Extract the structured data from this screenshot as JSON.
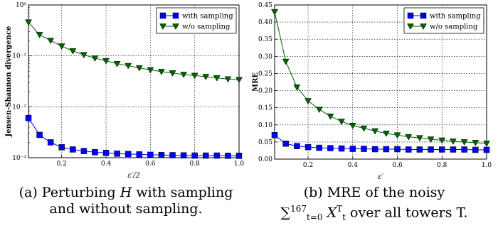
{
  "chart_data": [
    {
      "type": "line",
      "scale": "log",
      "xlabel": "ε′/2",
      "ylabel": "Jensen-Shannon divergence",
      "xlim": [
        0.05,
        1.0
      ],
      "ylim": [
        0.001,
        1.0
      ],
      "xticks": [
        "0.2",
        "0.4",
        "0.6",
        "0.8",
        "1.0"
      ],
      "yticks": [
        "10⁻³",
        "10⁻²",
        "10⁻¹",
        "10⁰"
      ],
      "grid": true,
      "legend_position": "top-right",
      "x": [
        0.05,
        0.1,
        0.15,
        0.2,
        0.25,
        0.3,
        0.35,
        0.4,
        0.45,
        0.5,
        0.55,
        0.6,
        0.65,
        0.7,
        0.75,
        0.8,
        0.85,
        0.9,
        0.95,
        1.0
      ],
      "series": [
        {
          "name": "with sampling",
          "color": "#0000ff",
          "marker": "square",
          "values": [
            0.006,
            0.0028,
            0.002,
            0.0016,
            0.00145,
            0.00135,
            0.00128,
            0.00124,
            0.0012,
            0.00118,
            0.00116,
            0.00114,
            0.00113,
            0.00112,
            0.00111,
            0.0011,
            0.0011,
            0.0011,
            0.00109,
            0.00109
          ]
        },
        {
          "name": "w/o sampling",
          "color": "#006400",
          "marker": "triangle-down",
          "values": [
            0.46,
            0.26,
            0.2,
            0.155,
            0.125,
            0.105,
            0.09,
            0.08,
            0.07,
            0.064,
            0.058,
            0.053,
            0.049,
            0.046,
            0.043,
            0.041,
            0.039,
            0.037,
            0.035,
            0.034
          ]
        }
      ]
    },
    {
      "type": "line",
      "scale": "linear",
      "xlabel": "ε′",
      "ylabel": "MRE",
      "xlim": [
        0.05,
        1.0
      ],
      "ylim": [
        0.0,
        0.45
      ],
      "xticks": [
        "0.2",
        "0.4",
        "0.6",
        "0.8",
        "1.0"
      ],
      "yticks": [
        "0.00",
        "0.05",
        "0.10",
        "0.15",
        "0.20",
        "0.25",
        "0.30",
        "0.35",
        "0.40",
        "0.45"
      ],
      "grid": true,
      "legend_position": "top-right",
      "x": [
        0.05,
        0.1,
        0.15,
        0.2,
        0.25,
        0.3,
        0.35,
        0.4,
        0.45,
        0.5,
        0.55,
        0.6,
        0.65,
        0.7,
        0.75,
        0.8,
        0.85,
        0.9,
        0.95,
        1.0
      ],
      "series": [
        {
          "name": "with sampling",
          "color": "#0000ff",
          "marker": "square",
          "values": [
            0.07,
            0.045,
            0.038,
            0.035,
            0.033,
            0.032,
            0.031,
            0.03,
            0.03,
            0.029,
            0.029,
            0.029,
            0.028,
            0.028,
            0.028,
            0.028,
            0.028,
            0.028,
            0.027,
            0.027
          ]
        },
        {
          "name": "w/o sampling",
          "color": "#006400",
          "marker": "triangle-down",
          "values": [
            0.43,
            0.285,
            0.21,
            0.17,
            0.145,
            0.125,
            0.11,
            0.098,
            0.09,
            0.082,
            0.075,
            0.07,
            0.065,
            0.062,
            0.058,
            0.055,
            0.052,
            0.05,
            0.048,
            0.046
          ]
        }
      ]
    }
  ],
  "captions": {
    "a_line1": "(a) Perturbing H with sampling",
    "a_line2": "and without sampling.",
    "b_line1": "(b) MRE of the noisy",
    "b_line2": "X over all towers T.",
    "b_sum": "∑",
    "b_sup": "167",
    "b_sub": "t=0",
    "b_var_sup": "T",
    "b_var_sub": "t"
  }
}
